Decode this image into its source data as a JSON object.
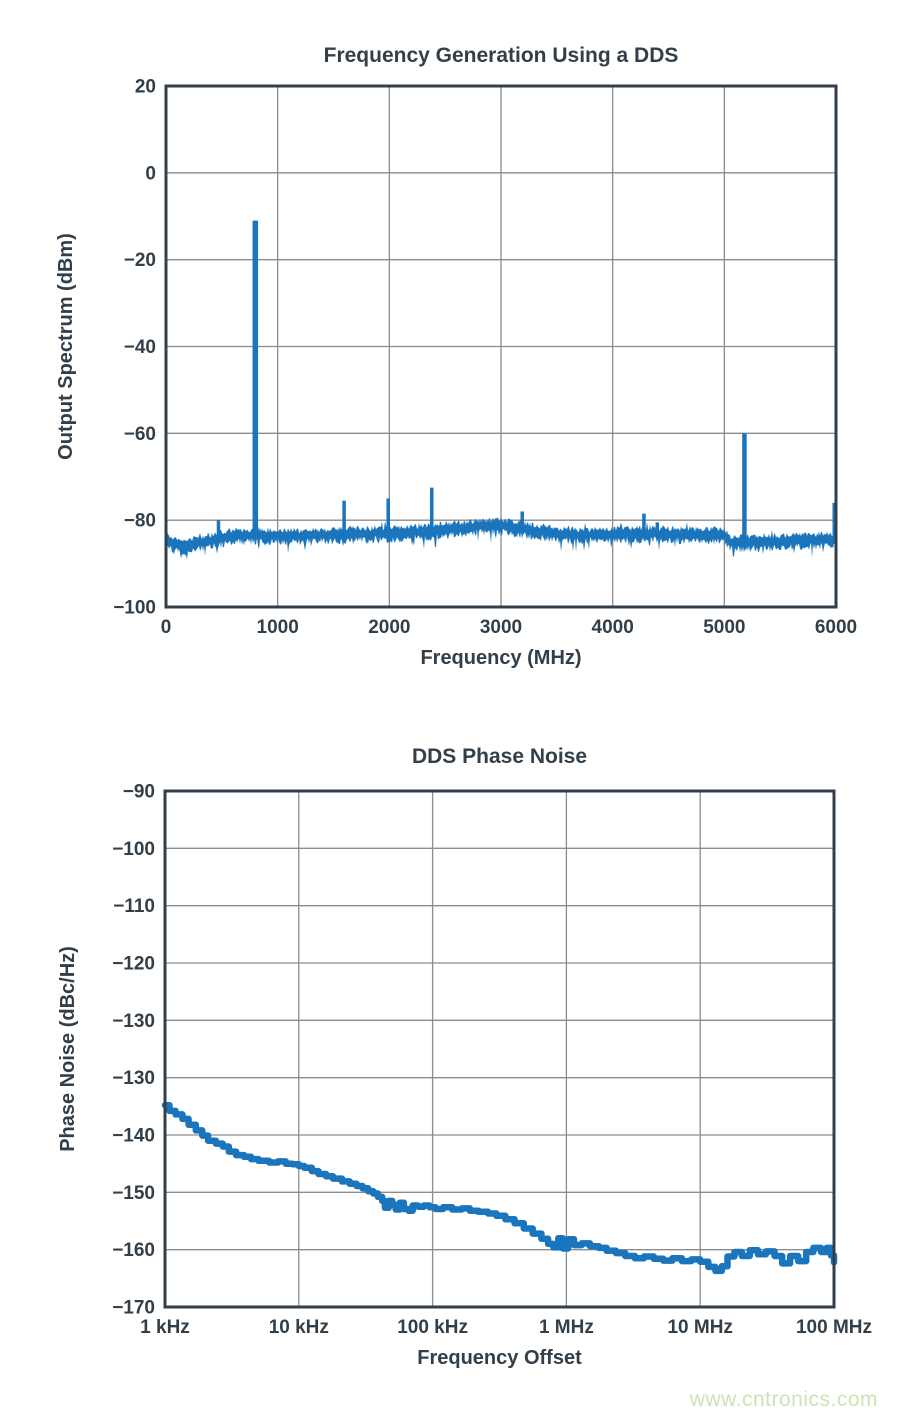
{
  "page": {
    "background": "#FFFFFF"
  },
  "style": {
    "series_color": "#1B75BC",
    "axis_color": "#333F48",
    "grid_color": "#8C8C8C",
    "text_color": "#333F48",
    "watermark_color": "#C9E5B5"
  },
  "watermark": {
    "text": "www.cntronics.com"
  },
  "chart_data": [
    {
      "type": "line",
      "subtype": "spectrum-trace",
      "title": "Frequency Generation Using a DDS",
      "xlabel": "Frequency (MHz)",
      "ylabel": "Output Spectrum (dBm)",
      "xlim": [
        0,
        6000
      ],
      "ylim": [
        -100,
        20
      ],
      "grid": true,
      "legend": "none",
      "xticks": {
        "values": [
          0,
          1000,
          2000,
          3000,
          4000,
          5000,
          6000
        ],
        "labels": [
          "0",
          "1000",
          "2000",
          "3000",
          "4000",
          "5000",
          "6000"
        ]
      },
      "yticks": {
        "values": [
          20,
          0,
          -20,
          -40,
          -60,
          -80,
          -100
        ],
        "labels": [
          "20",
          "0",
          "−20",
          "−40",
          "−60",
          "−80",
          "−100"
        ]
      },
      "main_tone": {
        "freq_mhz": 800,
        "level_dbm": -11
      },
      "spurs": [
        [
          470,
          -80.0
        ],
        [
          800,
          -11.0
        ],
        [
          1595,
          -75.5
        ],
        [
          1990,
          -75.0
        ],
        [
          2380,
          -72.5
        ],
        [
          3190,
          -78.0
        ],
        [
          4280,
          -78.5
        ],
        [
          4400,
          -80.5
        ],
        [
          5180,
          -60.0
        ],
        [
          5985,
          -76.0
        ]
      ],
      "noise_floor_envelope": [
        [
          0,
          -84.0
        ],
        [
          60,
          -85.4
        ],
        [
          150,
          -85.8
        ],
        [
          250,
          -85.4
        ],
        [
          350,
          -84.8
        ],
        [
          450,
          -84.2
        ],
        [
          560,
          -83.6
        ],
        [
          700,
          -83.3
        ],
        [
          900,
          -83.4
        ],
        [
          1200,
          -83.4
        ],
        [
          1500,
          -83.2
        ],
        [
          1800,
          -83.0
        ],
        [
          2100,
          -82.8
        ],
        [
          2400,
          -82.3
        ],
        [
          2600,
          -81.8
        ],
        [
          2800,
          -81.2
        ],
        [
          3000,
          -81.1
        ],
        [
          3150,
          -81.6
        ],
        [
          3300,
          -82.3
        ],
        [
          3500,
          -83.0
        ],
        [
          3700,
          -83.3
        ],
        [
          4000,
          -83.1
        ],
        [
          4300,
          -82.9
        ],
        [
          4600,
          -83.1
        ],
        [
          5000,
          -83.2
        ],
        [
          5060,
          -85.1
        ],
        [
          5300,
          -84.9
        ],
        [
          5600,
          -84.6
        ],
        [
          6000,
          -84.2
        ]
      ],
      "noise_seed": 11
    },
    {
      "type": "line",
      "subtype": "logx-step-curve",
      "title": "DDS Phase Noise",
      "xlabel": "Frequency Offset",
      "ylabel": "Phase Noise (dBc/Hz)",
      "xscale": "log",
      "xlim_hz": [
        1000,
        100000000
      ],
      "grid": true,
      "legend": "none",
      "xticks": {
        "labels": [
          "1 kHz",
          "10 kHz",
          "100 kHz",
          "1 MHz",
          "10 MHz",
          "100 MHz"
        ]
      },
      "yticks": {
        "labels": [
          "−90",
          "−100",
          "−110",
          "−120",
          "−130",
          "−130",
          "−140",
          "−150",
          "−160",
          "−170"
        ]
      },
      "points": [
        [
          1000,
          -134.8
        ],
        [
          1080,
          -135.8
        ],
        [
          1200,
          -136.4
        ],
        [
          1350,
          -137.2
        ],
        [
          1500,
          -138.2
        ],
        [
          1700,
          -139.2
        ],
        [
          1900,
          -140.1
        ],
        [
          2100,
          -141.0
        ],
        [
          2400,
          -141.5
        ],
        [
          2700,
          -142.0
        ],
        [
          3000,
          -142.9
        ],
        [
          3400,
          -143.5
        ],
        [
          3900,
          -143.8
        ],
        [
          4400,
          -144.2
        ],
        [
          5000,
          -144.5
        ],
        [
          6000,
          -144.8
        ],
        [
          7000,
          -144.6
        ],
        [
          8000,
          -145.0
        ],
        [
          9000,
          -145.1
        ],
        [
          10000,
          -145.4
        ],
        [
          11000,
          -145.7
        ],
        [
          12500,
          -146.3
        ],
        [
          14000,
          -146.8
        ],
        [
          16000,
          -147.2
        ],
        [
          18000,
          -147.6
        ],
        [
          21000,
          -148.1
        ],
        [
          24000,
          -148.5
        ],
        [
          27000,
          -148.9
        ],
        [
          30000,
          -149.3
        ],
        [
          33000,
          -149.8
        ],
        [
          36000,
          -150.2
        ],
        [
          39000,
          -150.8
        ],
        [
          42000,
          -151.5
        ],
        [
          44000,
          -152.7
        ],
        [
          47000,
          -151.5
        ],
        [
          50000,
          -152.2
        ],
        [
          53000,
          -153.0
        ],
        [
          57000,
          -151.8
        ],
        [
          61000,
          -152.9
        ],
        [
          66000,
          -153.2
        ],
        [
          71000,
          -152.3
        ],
        [
          78000,
          -152.5
        ],
        [
          86000,
          -152.3
        ],
        [
          95000,
          -152.6
        ],
        [
          105000,
          -152.9
        ],
        [
          120000,
          -152.6
        ],
        [
          140000,
          -153.0
        ],
        [
          165000,
          -152.8
        ],
        [
          190000,
          -153.2
        ],
        [
          220000,
          -153.4
        ],
        [
          260000,
          -153.7
        ],
        [
          300000,
          -154.1
        ],
        [
          350000,
          -154.7
        ],
        [
          410000,
          -155.4
        ],
        [
          480000,
          -156.3
        ],
        [
          560000,
          -157.2
        ],
        [
          650000,
          -158.1
        ],
        [
          730000,
          -159.0
        ],
        [
          800000,
          -159.6
        ],
        [
          870000,
          -158.0
        ],
        [
          940000,
          -159.8
        ],
        [
          1030000,
          -158.2
        ],
        [
          1140000,
          -159.2
        ],
        [
          1300000,
          -158.9
        ],
        [
          1500000,
          -159.4
        ],
        [
          1750000,
          -159.7
        ],
        [
          2000000,
          -160.2
        ],
        [
          2350000,
          -160.6
        ],
        [
          2750000,
          -161.1
        ],
        [
          3250000,
          -161.5
        ],
        [
          3800000,
          -161.2
        ],
        [
          4500000,
          -161.6
        ],
        [
          5300000,
          -161.9
        ],
        [
          6200000,
          -161.5
        ],
        [
          7300000,
          -162.0
        ],
        [
          8600000,
          -161.7
        ],
        [
          10000000,
          -162.1
        ],
        [
          11500000,
          -163.0
        ],
        [
          13000000,
          -163.7
        ],
        [
          14500000,
          -162.9
        ],
        [
          16000000,
          -161.2
        ],
        [
          18000000,
          -160.4
        ],
        [
          20500000,
          -161.1
        ],
        [
          23500000,
          -160.1
        ],
        [
          27000000,
          -160.8
        ],
        [
          31000000,
          -160.3
        ],
        [
          36000000,
          -161.1
        ],
        [
          41000000,
          -162.4
        ],
        [
          47000000,
          -161.1
        ],
        [
          54000000,
          -162.0
        ],
        [
          62000000,
          -160.4
        ],
        [
          70000000,
          -159.7
        ],
        [
          80000000,
          -160.4
        ],
        [
          88000000,
          -159.7
        ],
        [
          95000000,
          -161.0
        ],
        [
          100000000,
          -162.2
        ]
      ]
    }
  ]
}
